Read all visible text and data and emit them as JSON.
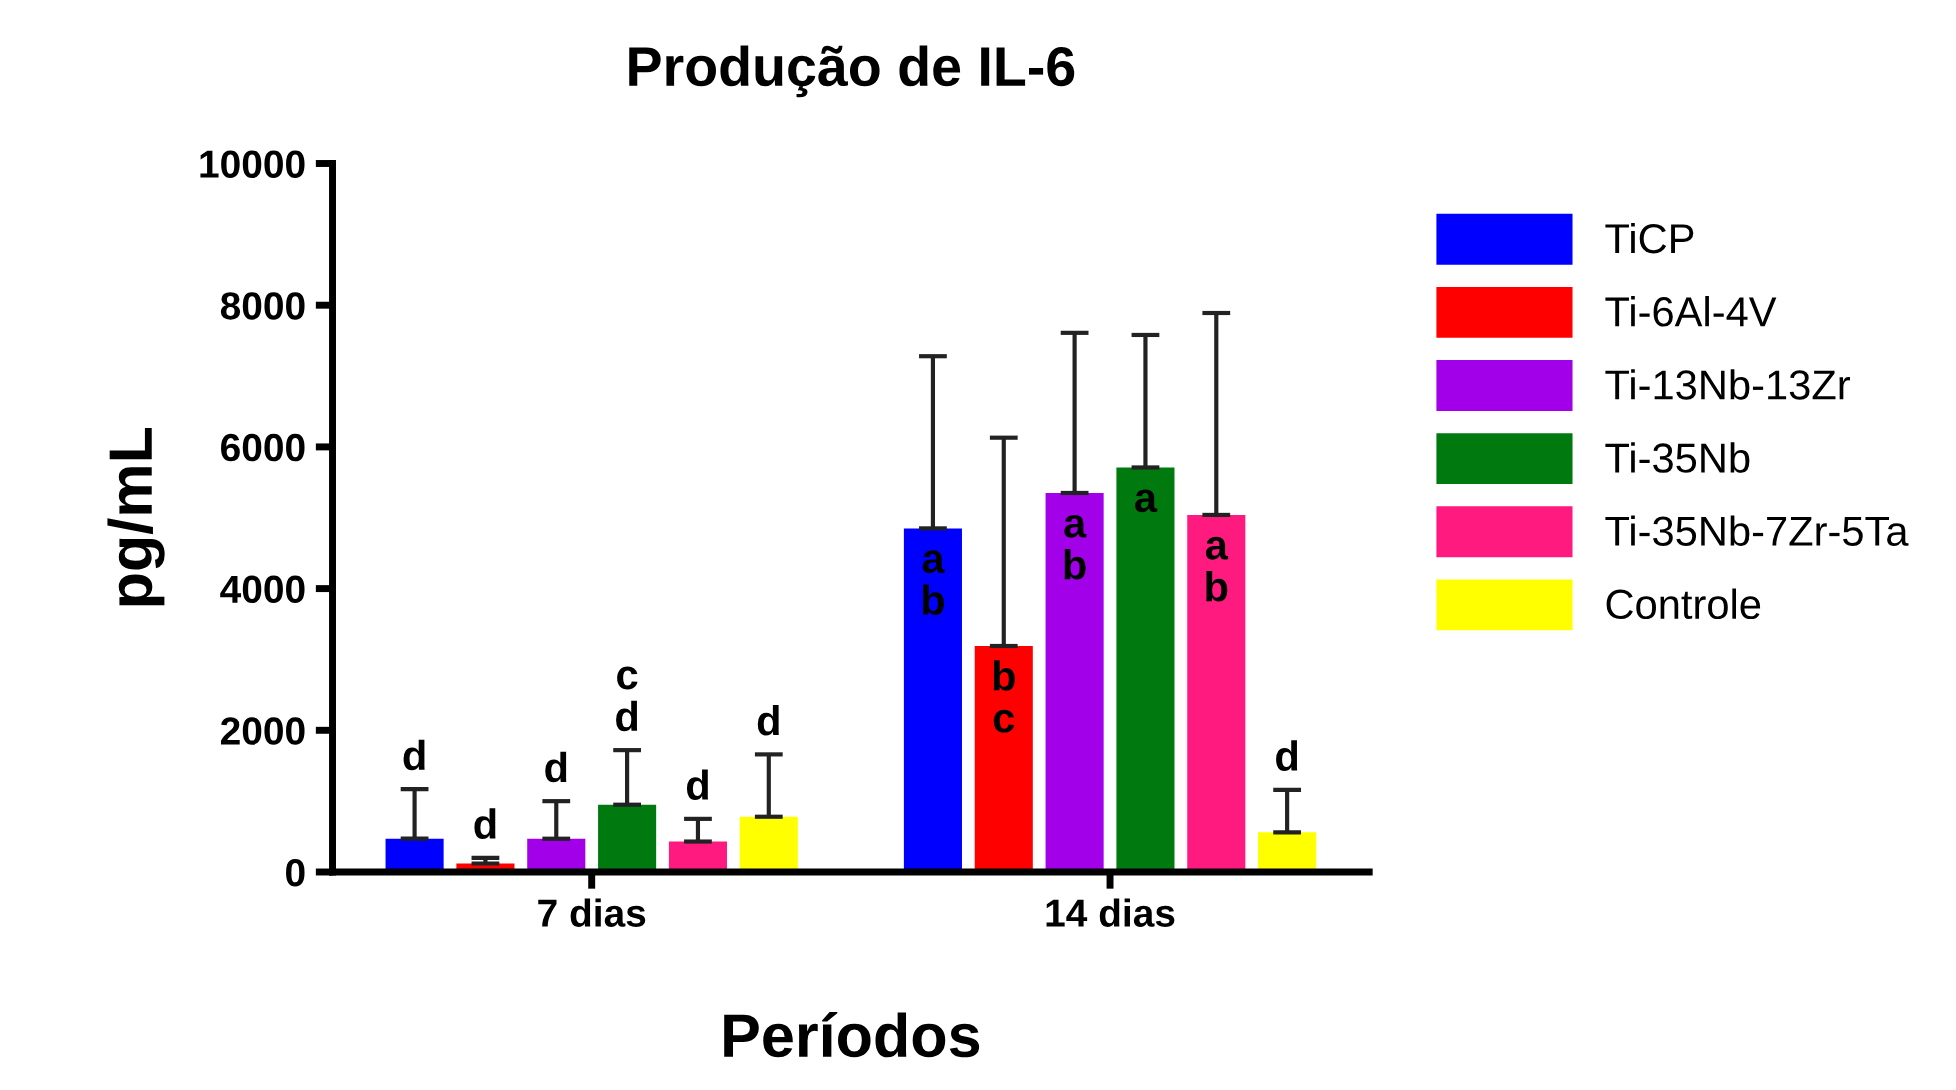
{
  "chart_data": {
    "type": "bar",
    "title": "Produção de IL-6",
    "xlabel": "Períodos",
    "ylabel": "pg/mL",
    "categories": [
      "7 dias",
      "14 dias"
    ],
    "series": [
      {
        "name": "TiCP",
        "color": "#0000ff",
        "values": [
          470,
          4850
        ],
        "errors": [
          [
            470,
            1170
          ],
          [
            4850,
            7280
          ]
        ],
        "value_labels": [
          "d",
          "a\nb"
        ]
      },
      {
        "name": "Ti-6Al-4V",
        "color": "#ff0000",
        "values": [
          120,
          3190
        ],
        "errors": [
          [
            120,
            200
          ],
          [
            3190,
            6130
          ]
        ],
        "value_labels": [
          "d",
          "b\nc"
        ]
      },
      {
        "name": "Ti-13Nb-13Zr",
        "color": "#a100e8",
        "values": [
          470,
          5350
        ],
        "errors": [
          [
            470,
            1000
          ],
          [
            5350,
            7610
          ]
        ],
        "value_labels": [
          "d",
          "a\nb"
        ]
      },
      {
        "name": "Ti-35Nb",
        "color": "#007a0f",
        "values": [
          950,
          5710
        ],
        "errors": [
          [
            950,
            1720
          ],
          [
            5710,
            7580
          ]
        ],
        "value_labels": [
          "c\nd",
          "a"
        ]
      },
      {
        "name": "Ti-35Nb-7Zr-5Ta",
        "color": "#ff1a80",
        "values": [
          430,
          5040
        ],
        "errors": [
          [
            430,
            750
          ],
          [
            5040,
            7890
          ]
        ],
        "value_labels": [
          "d",
          "a\nb"
        ]
      },
      {
        "name": "Controle",
        "color": "#ffff00",
        "values": [
          780,
          560
        ],
        "errors": [
          [
            780,
            1660
          ],
          [
            560,
            1160
          ]
        ],
        "value_labels": [
          "d",
          "d"
        ]
      }
    ],
    "ylim": [
      0,
      10000
    ],
    "yticks": [
      0,
      2000,
      4000,
      6000,
      8000,
      10000
    ],
    "grid": false,
    "legend": "right"
  }
}
